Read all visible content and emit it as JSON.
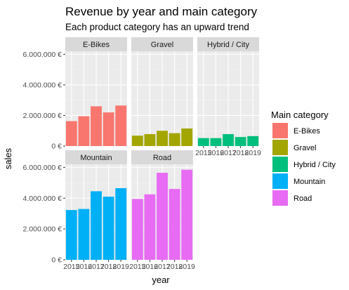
{
  "chart_data": {
    "type": "bar",
    "title": "Revenue by year and main category",
    "subtitle": "Each product category has an upward trend",
    "xlabel": "year",
    "ylabel": "sales",
    "categories": [
      "2015",
      "2016",
      "2017",
      "2018",
      "2019"
    ],
    "y_ticks": [
      0,
      2000000,
      4000000,
      6000000
    ],
    "y_tick_labels": [
      "0 €",
      "2.000.000 €",
      "4.000.000 €",
      "6.000.000 €"
    ],
    "ylim": [
      0,
      6200000
    ],
    "facet_layout": "wrap 3 columns",
    "grid": true,
    "legend": {
      "title": "Main category",
      "position": "right"
    },
    "series": [
      {
        "name": "E-Bikes",
        "color": "#F8766D",
        "values": [
          1630000,
          1950000,
          2600000,
          2200000,
          2650000
        ]
      },
      {
        "name": "Gravel",
        "color": "#A3A500",
        "values": [
          680000,
          780000,
          1000000,
          840000,
          1150000
        ]
      },
      {
        "name": "Hybrid / City",
        "color": "#00BF7D",
        "values": [
          520000,
          520000,
          780000,
          590000,
          650000
        ]
      },
      {
        "name": "Mountain",
        "color": "#00B0F6",
        "values": [
          3230000,
          3300000,
          4450000,
          4100000,
          4650000
        ]
      },
      {
        "name": "Road",
        "color": "#E76BF3",
        "values": [
          3950000,
          4250000,
          5650000,
          4600000,
          5850000
        ]
      }
    ]
  }
}
